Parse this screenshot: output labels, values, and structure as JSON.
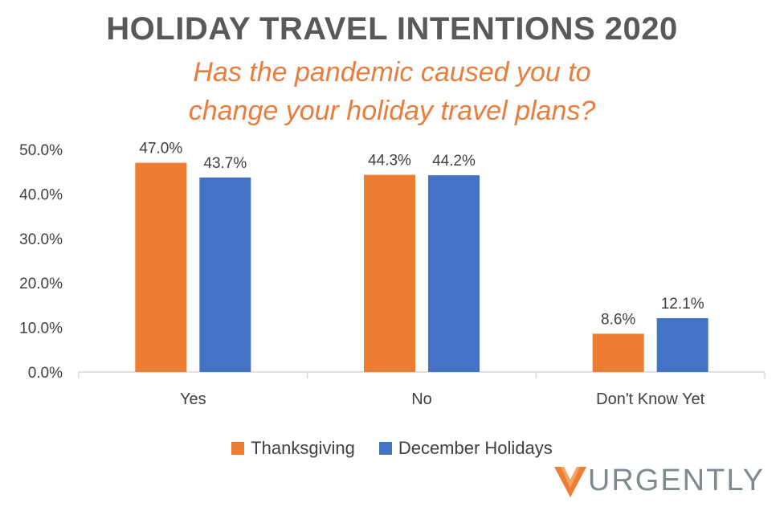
{
  "title": "HOLIDAY TRAVEL INTENTIONS 2020",
  "subtitle": "Has the pandemic caused you to change your holiday travel plans?",
  "logo": {
    "text": "URGENTLY",
    "icon": "urgently-chevron-logo"
  },
  "chart_data": {
    "type": "bar",
    "categories": [
      "Yes",
      "No",
      "Don't Know Yet"
    ],
    "series": [
      {
        "name": "Thanksgiving",
        "values": [
          47.0,
          44.3,
          8.6
        ],
        "color": "#ED7D31"
      },
      {
        "name": "December Holidays",
        "values": [
          43.7,
          44.2,
          12.1
        ],
        "color": "#4472C4"
      }
    ],
    "data_labels": [
      [
        "47.0%",
        "44.3%",
        "8.6%"
      ],
      [
        "43.7%",
        "44.2%",
        "12.1%"
      ]
    ],
    "y_ticks": [
      "0.0%",
      "10.0%",
      "20.0%",
      "30.0%",
      "40.0%",
      "50.0%"
    ],
    "ylim": [
      0,
      50
    ],
    "grid": false,
    "legend_position": "bottom"
  }
}
